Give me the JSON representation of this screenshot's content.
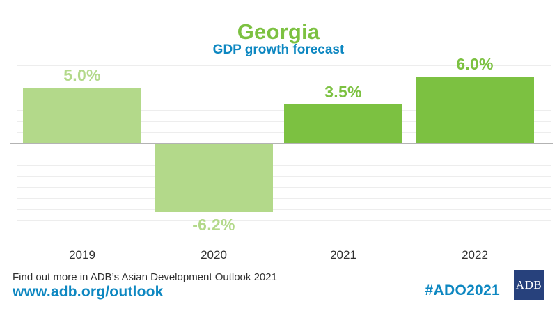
{
  "header": {
    "title": "Georgia",
    "subtitle": "GDP growth forecast"
  },
  "chart_data": {
    "type": "bar",
    "title": "Georgia",
    "subtitle": "GDP growth forecast",
    "categories": [
      "2019",
      "2020",
      "2021",
      "2022"
    ],
    "values": [
      5.0,
      -6.2,
      3.5,
      6.0
    ],
    "value_labels": [
      "5.0%",
      "-6.2%",
      "3.5%",
      "6.0%"
    ],
    "bar_styles": [
      "actual",
      "actual",
      "forecast",
      "forecast"
    ],
    "xlabel": "",
    "ylabel": "",
    "ylim": [
      -8,
      7
    ],
    "gridlines": "horizontal, every 1%, baseline at 0 emphasized",
    "legend": "none"
  },
  "footer": {
    "note": "Find out more in ADB’s Asian Development Outlook 2021",
    "url": "www.adb.org/outlook",
    "hashtag": "#ADO2021",
    "logo_text": "ADB"
  },
  "colors": {
    "light_green_actual": "#b3d98a",
    "dark_green_forecast": "#7cc141",
    "title_green": "#7cc141",
    "accent_blue": "#0d87c1",
    "logo_navy": "#27417c",
    "zero_line_gray": "#b3b3b3",
    "gridline_gray": "#ededed",
    "text_dark": "#2f2f2f"
  }
}
